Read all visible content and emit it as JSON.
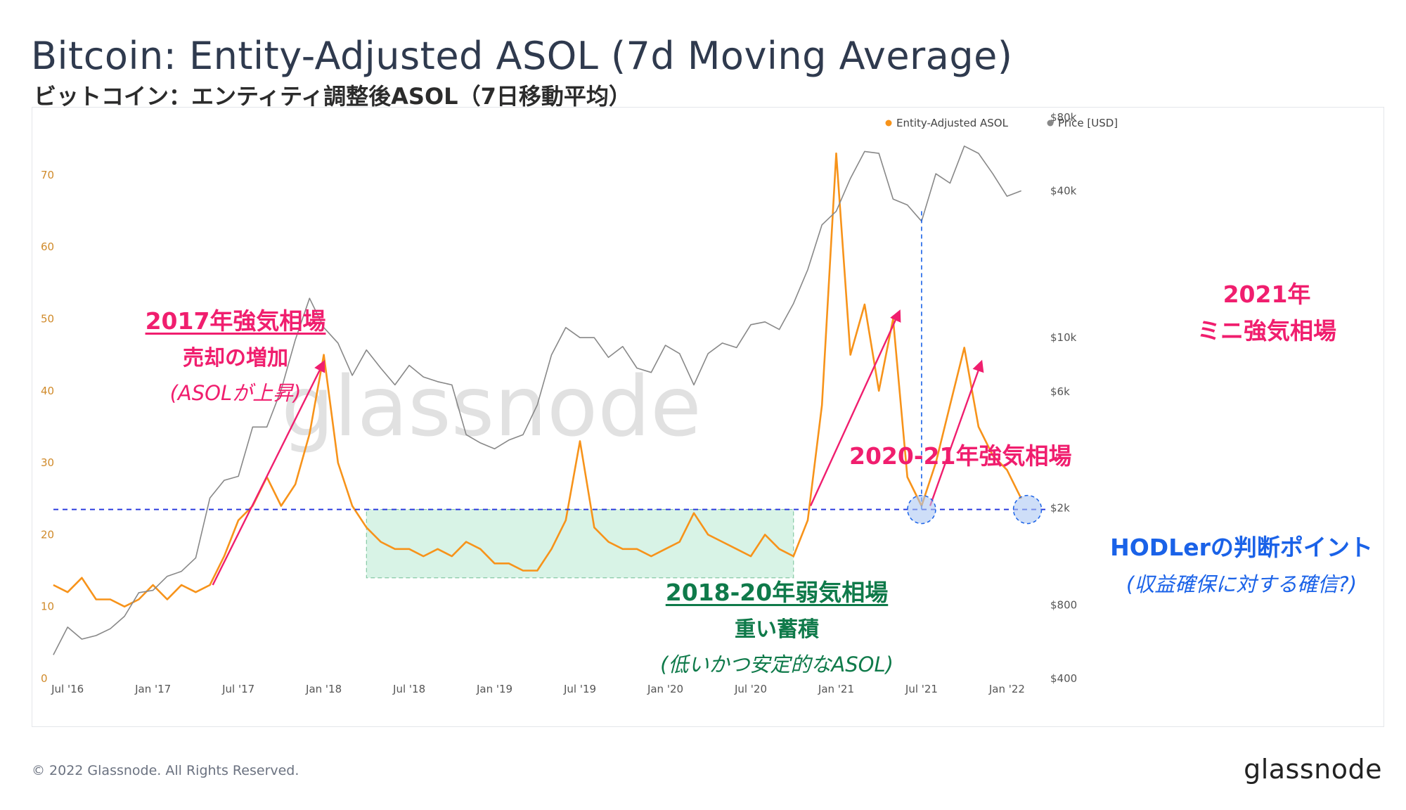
{
  "header": {
    "title": "Bitcoin: Entity-Adjusted ASOL (7d Moving Average)",
    "subtitle": "ビットコイン：エンティティ調整後ASOL（7日移動平均）"
  },
  "footer": {
    "copyright": "© 2022 Glassnode. All Rights Reserved.",
    "logo": "glassnode"
  },
  "watermark": "glassnode",
  "annotations": {
    "bull2017": {
      "line1": "2017年強気相場",
      "line2": "売却の増加",
      "line3": "(ASOLが上昇)"
    },
    "bear2018": {
      "line1": "2018-20年弱気相場",
      "line2": "重い蓄積",
      "line3": "(低いかつ安定的なASOL)"
    },
    "bull2020": {
      "line1": "2020-21年強気相場"
    },
    "mini2021": {
      "line1": "2021年",
      "line2": "ミニ強気相場"
    },
    "hodler": {
      "line1": "HODLerの判断ポイント",
      "line2": "(収益確保に対する確信?)"
    }
  },
  "colors": {
    "asol": "#f7931a",
    "price": "#888888",
    "pink": "#f01e6e",
    "green": "#0f7a4a",
    "blue": "#1a62e8",
    "zone_fill": "#d8f3e6"
  },
  "chart_data": {
    "type": "line",
    "legend": {
      "position": "top-right",
      "items": [
        {
          "name": "Entity-Adjusted ASOL",
          "color": "#f7931a"
        },
        {
          "name": "Price [USD]",
          "color": "#888888"
        }
      ]
    },
    "x_ticks": [
      "Jul '16",
      "Jan '17",
      "Jul '17",
      "Jan '18",
      "Jul '18",
      "Jan '19",
      "Jul '19",
      "Jan '20",
      "Jul '20",
      "Jan '21",
      "Jul '21",
      "Jan '22"
    ],
    "y_left": {
      "ticks": [
        "0",
        "10",
        "20",
        "30",
        "40",
        "50",
        "60",
        "70"
      ],
      "range": [
        0,
        78
      ],
      "scale": "linear"
    },
    "y_right": {
      "ticks": [
        "$400",
        "$800",
        "$2k",
        "$6k",
        "$10k",
        "$40k",
        "$80k"
      ],
      "values": [
        400,
        800,
        2000,
        6000,
        10000,
        40000,
        80000
      ],
      "range": [
        400,
        80000
      ],
      "scale": "log"
    },
    "reference_line": {
      "y": 23.5,
      "style": "dashed",
      "color": "#2233dd"
    },
    "accumulation_zone": {
      "x_start": "2018-04",
      "x_end": "2020-10",
      "y_range": [
        14,
        23.5
      ]
    },
    "series": [
      {
        "name": "Entity-Adjusted ASOL",
        "axis": "left",
        "points": [
          [
            "2016-06",
            13
          ],
          [
            "2016-07",
            12
          ],
          [
            "2016-08",
            14
          ],
          [
            "2016-09",
            11
          ],
          [
            "2016-10",
            11
          ],
          [
            "2016-11",
            10
          ],
          [
            "2016-12",
            11
          ],
          [
            "2017-01",
            13
          ],
          [
            "2017-02",
            11
          ],
          [
            "2017-03",
            13
          ],
          [
            "2017-04",
            12
          ],
          [
            "2017-05",
            13
          ],
          [
            "2017-06",
            17
          ],
          [
            "2017-07",
            22
          ],
          [
            "2017-08",
            24
          ],
          [
            "2017-09",
            28
          ],
          [
            "2017-10",
            24
          ],
          [
            "2017-11",
            27
          ],
          [
            "2017-12",
            34
          ],
          [
            "2018-01",
            45
          ],
          [
            "2018-02",
            30
          ],
          [
            "2018-03",
            24
          ],
          [
            "2018-04",
            21
          ],
          [
            "2018-05",
            19
          ],
          [
            "2018-06",
            18
          ],
          [
            "2018-07",
            18
          ],
          [
            "2018-08",
            17
          ],
          [
            "2018-09",
            18
          ],
          [
            "2018-10",
            17
          ],
          [
            "2018-11",
            19
          ],
          [
            "2018-12",
            18
          ],
          [
            "2019-01",
            16
          ],
          [
            "2019-02",
            16
          ],
          [
            "2019-03",
            15
          ],
          [
            "2019-04",
            15
          ],
          [
            "2019-05",
            18
          ],
          [
            "2019-06",
            22
          ],
          [
            "2019-07",
            33
          ],
          [
            "2019-08",
            21
          ],
          [
            "2019-09",
            19
          ],
          [
            "2019-10",
            18
          ],
          [
            "2019-11",
            18
          ],
          [
            "2019-12",
            17
          ],
          [
            "2020-01",
            18
          ],
          [
            "2020-02",
            19
          ],
          [
            "2020-03",
            23
          ],
          [
            "2020-04",
            20
          ],
          [
            "2020-05",
            19
          ],
          [
            "2020-06",
            18
          ],
          [
            "2020-07",
            17
          ],
          [
            "2020-08",
            20
          ],
          [
            "2020-09",
            18
          ],
          [
            "2020-10",
            17
          ],
          [
            "2020-11",
            22
          ],
          [
            "2020-12",
            38
          ],
          [
            "2021-01",
            73
          ],
          [
            "2021-02",
            45
          ],
          [
            "2021-03",
            52
          ],
          [
            "2021-04",
            40
          ],
          [
            "2021-05",
            50
          ],
          [
            "2021-06",
            28
          ],
          [
            "2021-07",
            24
          ],
          [
            "2021-08",
            30
          ],
          [
            "2021-09",
            38
          ],
          [
            "2021-10",
            46
          ],
          [
            "2021-11",
            35
          ],
          [
            "2021-12",
            31
          ],
          [
            "2022-01",
            29
          ],
          [
            "2022-02",
            25
          ]
        ]
      },
      {
        "name": "Price [USD]",
        "axis": "right",
        "points": [
          [
            "2016-06",
            500
          ],
          [
            "2016-07",
            650
          ],
          [
            "2016-08",
            580
          ],
          [
            "2016-09",
            600
          ],
          [
            "2016-10",
            640
          ],
          [
            "2016-11",
            720
          ],
          [
            "2016-12",
            900
          ],
          [
            "2017-01",
            920
          ],
          [
            "2017-02",
            1050
          ],
          [
            "2017-03",
            1100
          ],
          [
            "2017-04",
            1250
          ],
          [
            "2017-05",
            2200
          ],
          [
            "2017-06",
            2600
          ],
          [
            "2017-07",
            2700
          ],
          [
            "2017-08",
            4300
          ],
          [
            "2017-09",
            4300
          ],
          [
            "2017-10",
            6100
          ],
          [
            "2017-11",
            9800
          ],
          [
            "2017-12",
            14500
          ],
          [
            "2018-01",
            11000
          ],
          [
            "2018-02",
            9500
          ],
          [
            "2018-03",
            7000
          ],
          [
            "2018-04",
            8900
          ],
          [
            "2018-05",
            7500
          ],
          [
            "2018-06",
            6400
          ],
          [
            "2018-07",
            7700
          ],
          [
            "2018-08",
            6900
          ],
          [
            "2018-09",
            6600
          ],
          [
            "2018-10",
            6400
          ],
          [
            "2018-11",
            4000
          ],
          [
            "2018-12",
            3700
          ],
          [
            "2019-01",
            3500
          ],
          [
            "2019-02",
            3800
          ],
          [
            "2019-03",
            4000
          ],
          [
            "2019-04",
            5300
          ],
          [
            "2019-05",
            8500
          ],
          [
            "2019-06",
            11000
          ],
          [
            "2019-07",
            10000
          ],
          [
            "2019-08",
            10000
          ],
          [
            "2019-09",
            8300
          ],
          [
            "2019-10",
            9200
          ],
          [
            "2019-11",
            7500
          ],
          [
            "2019-12",
            7200
          ],
          [
            "2020-01",
            9300
          ],
          [
            "2020-02",
            8600
          ],
          [
            "2020-03",
            6400
          ],
          [
            "2020-04",
            8600
          ],
          [
            "2020-05",
            9500
          ],
          [
            "2020-06",
            9100
          ],
          [
            "2020-07",
            11300
          ],
          [
            "2020-08",
            11600
          ],
          [
            "2020-09",
            10800
          ],
          [
            "2020-10",
            13800
          ],
          [
            "2020-11",
            19000
          ],
          [
            "2020-12",
            29000
          ],
          [
            "2021-01",
            33000
          ],
          [
            "2021-02",
            45000
          ],
          [
            "2021-03",
            58000
          ],
          [
            "2021-04",
            57000
          ],
          [
            "2021-05",
            37000
          ],
          [
            "2021-06",
            35000
          ],
          [
            "2021-07",
            30000
          ],
          [
            "2021-08",
            47000
          ],
          [
            "2021-09",
            43000
          ],
          [
            "2021-10",
            61000
          ],
          [
            "2021-11",
            57000
          ],
          [
            "2021-12",
            47000
          ],
          [
            "2022-01",
            38000
          ],
          [
            "2022-02",
            40000
          ]
        ]
      }
    ]
  }
}
